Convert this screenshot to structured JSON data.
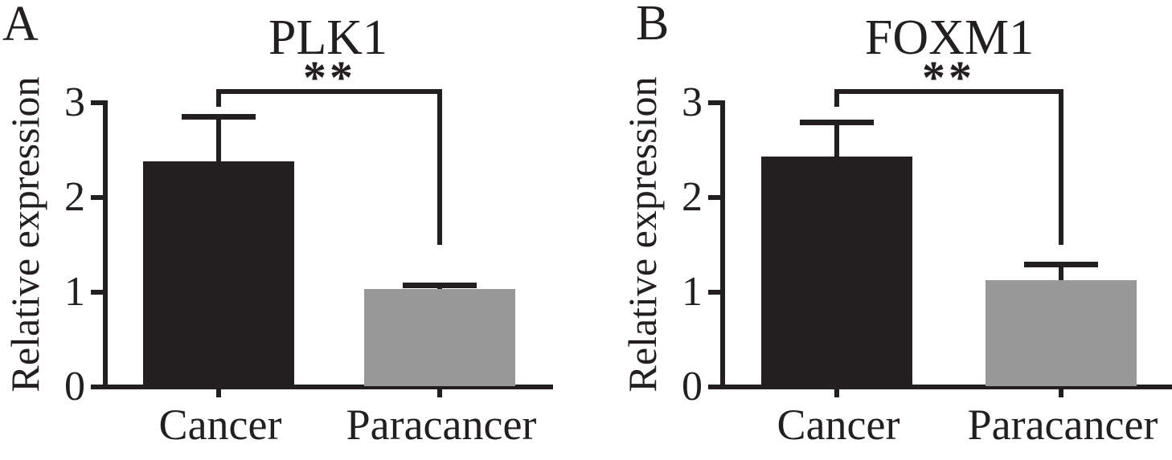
{
  "figure_background": "#ffffff",
  "chart_data": [
    {
      "type": "bar",
      "panel_label": "A",
      "title": "PLK1",
      "xlabel": "",
      "ylabel": "Relative expression",
      "ylim": [
        0,
        3
      ],
      "yticks": [
        0,
        1,
        2,
        3
      ],
      "grid": "off",
      "legend": "none",
      "categories": [
        "Cancer",
        "Paracancer"
      ],
      "values": [
        2.38,
        1.03
      ],
      "errors_plus": [
        0.48,
        0.05
      ],
      "error_top": [
        2.86,
        1.08
      ],
      "bar_colors": [
        "#231f20",
        "#989898"
      ],
      "significance": {
        "label": "**",
        "groups": [
          "Cancer",
          "Paracancer"
        ]
      }
    },
    {
      "type": "bar",
      "panel_label": "B",
      "title": "FOXM1",
      "xlabel": "",
      "ylabel": "Relative expression",
      "ylim": [
        0,
        3
      ],
      "yticks": [
        0,
        1,
        2,
        3
      ],
      "grid": "off",
      "legend": "none",
      "categories": [
        "Cancer",
        "Paracancer"
      ],
      "values": [
        2.43,
        1.13
      ],
      "errors_plus": [
        0.37,
        0.17
      ],
      "error_top": [
        2.8,
        1.3
      ],
      "bar_colors": [
        "#231f20",
        "#989898"
      ],
      "significance": {
        "label": "**",
        "groups": [
          "Cancer",
          "Paracancer"
        ]
      }
    }
  ]
}
